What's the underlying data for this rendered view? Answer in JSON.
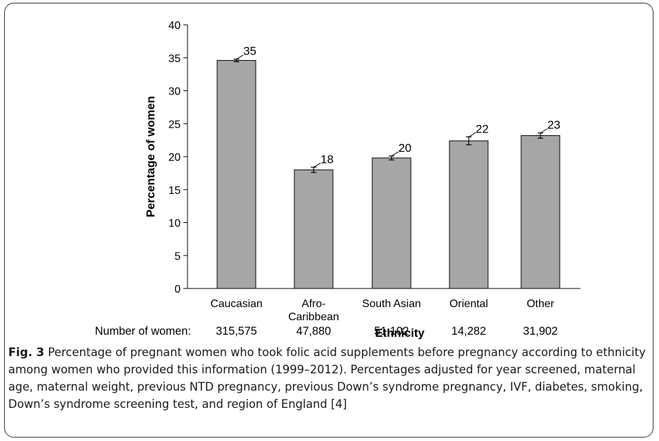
{
  "chart_data": {
    "type": "bar",
    "categories": [
      "Caucasian",
      "Afro-\nCaribbean",
      "South Asian",
      "Oriental",
      "Other"
    ],
    "values": [
      34.6,
      18.0,
      19.8,
      22.4,
      23.2
    ],
    "error_low": [
      34.4,
      17.6,
      19.5,
      21.8,
      22.8
    ],
    "error_high": [
      34.8,
      18.4,
      20.1,
      23.0,
      23.6
    ],
    "data_labels": [
      "35",
      "18",
      "20",
      "22",
      "23"
    ],
    "xlabel": "Ethnicity",
    "ylabel": "Percentage  of  women",
    "ylim": [
      0,
      40
    ],
    "yticks": [
      "0",
      "5",
      "10",
      "15",
      "20",
      "25",
      "30",
      "35",
      "40"
    ],
    "grid": false,
    "bar_color": "#a6a6a6",
    "count_row_label": "Number of women:",
    "counts": [
      "315,575",
      "47,880",
      "51,102",
      "14,282",
      "31,902"
    ]
  },
  "caption": {
    "label": "Fig. 3",
    "text": " Percentage of pregnant women who took folic acid supplements before pregnancy according to ethnicity among women who provided this information (1999–2012). Percentages adjusted for year screened, maternal age, maternal weight, previous NTD pregnancy, previous Down’s syndrome pregnancy, IVF, diabetes, smoking, Down’s syndrome screening test, and region of England [4]"
  }
}
